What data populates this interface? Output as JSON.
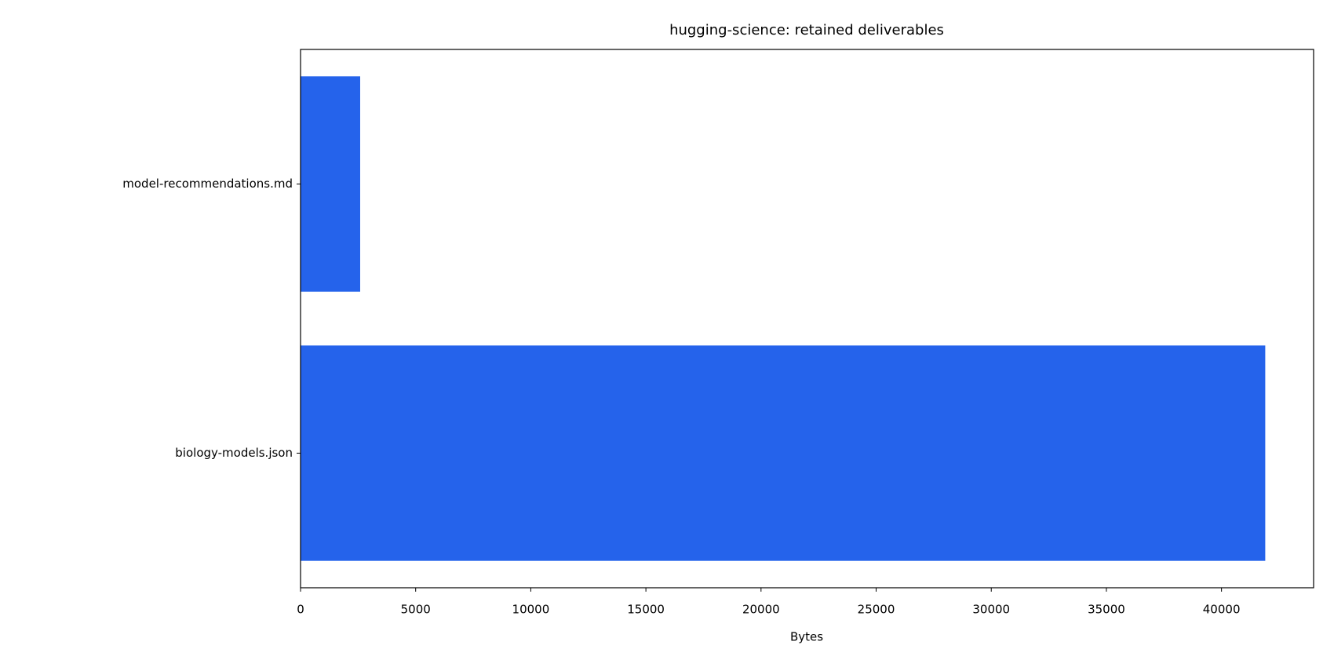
{
  "chart_data": {
    "type": "barh",
    "title": "hugging-science: retained deliverables",
    "xlabel": "Bytes",
    "categories": [
      "biology-models.json",
      "model-recommendations.md"
    ],
    "values": [
      41900,
      2590
    ],
    "color": "#2563eb",
    "xlim": [
      0,
      44000
    ],
    "xticks": [
      0,
      5000,
      10000,
      15000,
      20000,
      25000,
      30000,
      35000,
      40000
    ]
  }
}
